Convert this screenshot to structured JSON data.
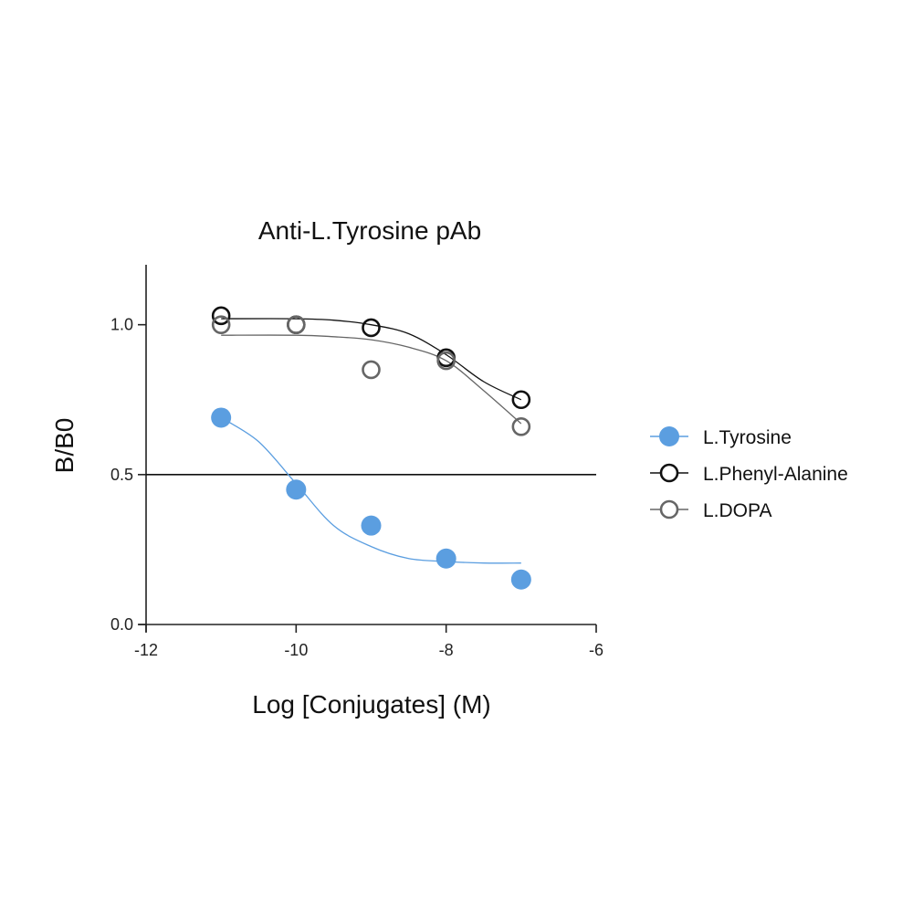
{
  "chart_data": {
    "type": "scatter",
    "title": "Anti-L.Tyrosine pAb",
    "xlabel": "Log [Conjugates] (M)",
    "ylabel": "B/B0",
    "xlim": [
      -12,
      -6
    ],
    "ylim": [
      0,
      1.2
    ],
    "x_ticks": [
      -12,
      -10,
      -8,
      -6
    ],
    "y_ticks": [
      0.0,
      0.5,
      1.0
    ],
    "x_tick_labels": [
      "-12",
      "-10",
      "-8",
      "-6"
    ],
    "y_tick_labels": [
      "0.0",
      "0.5",
      "1.0"
    ],
    "reference_line": {
      "y": 0.5
    },
    "grid": false,
    "legend_position": "right",
    "series": [
      {
        "name": "L.Tyrosine",
        "marker": "filled-circle",
        "color": "#5b9ee0",
        "x": [
          -11,
          -10,
          -9,
          -8,
          -7
        ],
        "y": [
          0.69,
          0.45,
          0.33,
          0.22,
          0.15
        ],
        "fit": [
          [
            -11,
            0.69
          ],
          [
            -10.5,
            0.61
          ],
          [
            -10,
            0.47
          ],
          [
            -9.5,
            0.33
          ],
          [
            -9,
            0.26
          ],
          [
            -8.5,
            0.22
          ],
          [
            -8,
            0.21
          ],
          [
            -7.5,
            0.205
          ],
          [
            -7,
            0.205
          ]
        ]
      },
      {
        "name": "L.Phenyl-Alanine",
        "marker": "open-circle",
        "color": "#111111",
        "x": [
          -11,
          -10,
          -9,
          -8,
          -7
        ],
        "y": [
          1.03,
          1.0,
          0.99,
          0.89,
          0.75
        ],
        "fit": [
          [
            -11,
            1.02
          ],
          [
            -10,
            1.02
          ],
          [
            -9.5,
            1.015
          ],
          [
            -9,
            1.0
          ],
          [
            -8.5,
            0.97
          ],
          [
            -8,
            0.9
          ],
          [
            -7.5,
            0.81
          ],
          [
            -7,
            0.75
          ]
        ]
      },
      {
        "name": "L.DOPA",
        "marker": "open-circle",
        "color": "#666666",
        "x": [
          -11,
          -10,
          -9,
          -8,
          -7
        ],
        "y": [
          1.0,
          1.0,
          0.85,
          0.88,
          0.66
        ],
        "fit": [
          [
            -11,
            0.965
          ],
          [
            -10,
            0.965
          ],
          [
            -9.5,
            0.96
          ],
          [
            -9,
            0.95
          ],
          [
            -8.5,
            0.925
          ],
          [
            -8,
            0.88
          ],
          [
            -7.5,
            0.78
          ],
          [
            -7,
            0.67
          ]
        ]
      }
    ]
  }
}
